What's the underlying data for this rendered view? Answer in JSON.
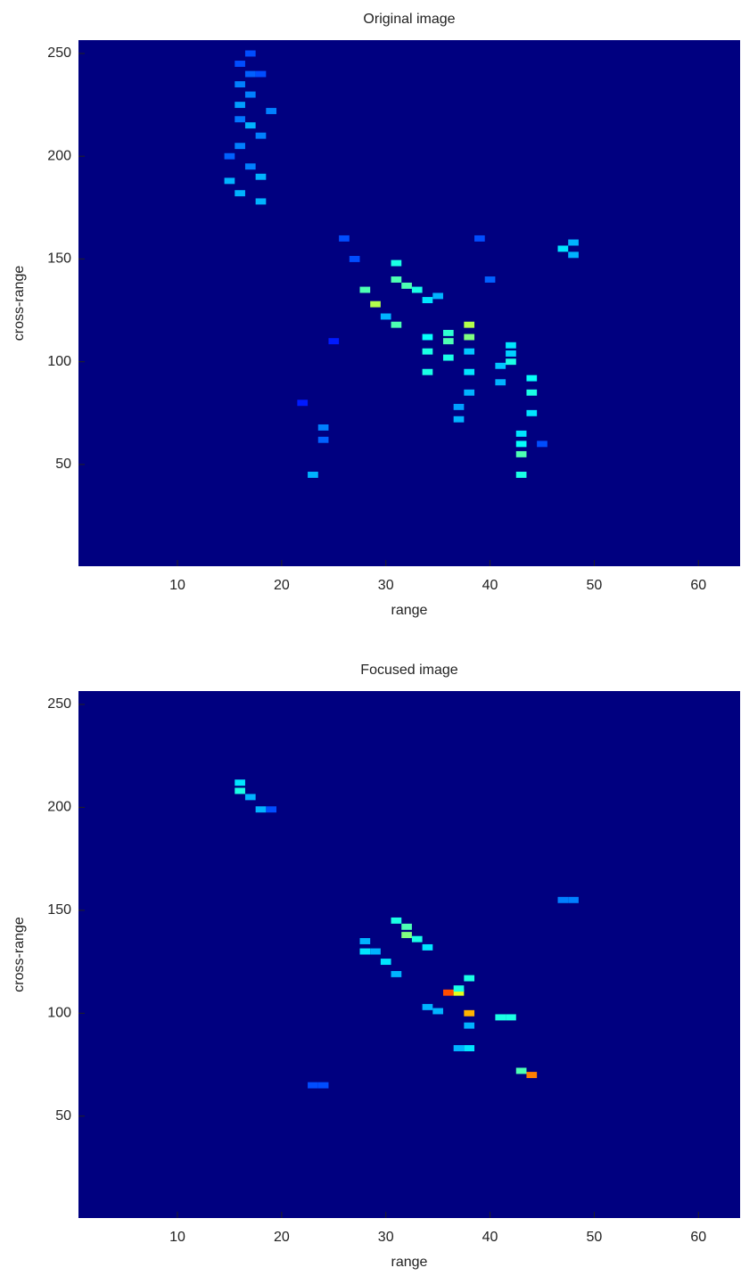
{
  "chart_data": [
    {
      "type": "heatmap",
      "title": "Original image",
      "xlabel": "range",
      "ylabel": "cross-range",
      "xlim": [
        0.5,
        64
      ],
      "ylim": [
        0.5,
        256.5
      ],
      "xticks": [
        10,
        20,
        30,
        40,
        50,
        60
      ],
      "yticks": [
        50,
        100,
        150,
        200,
        250
      ],
      "colormap": "jet",
      "clim": [
        0,
        1
      ],
      "x": [
        16,
        16,
        16,
        17,
        17,
        16,
        15,
        15,
        16,
        17,
        18,
        18,
        18,
        19,
        17,
        18,
        17,
        16,
        28,
        29,
        30,
        31,
        31,
        32,
        33,
        31,
        34,
        35,
        34,
        34,
        34,
        36,
        36,
        36,
        38,
        38,
        38,
        38,
        38,
        37,
        37,
        41,
        41,
        42,
        42,
        42,
        43,
        43,
        43,
        43,
        44,
        44,
        44,
        47,
        48,
        48,
        23,
        24,
        24,
        26,
        27,
        39,
        40,
        45,
        22,
        25
      ],
      "y": [
        245,
        235,
        225,
        230,
        215,
        205,
        200,
        188,
        182,
        195,
        190,
        178,
        210,
        222,
        250,
        240,
        240,
        218,
        135,
        128,
        122,
        148,
        140,
        137,
        135,
        118,
        130,
        132,
        105,
        95,
        112,
        110,
        102,
        114,
        118,
        112,
        95,
        85,
        105,
        72,
        78,
        90,
        98,
        100,
        108,
        104,
        65,
        55,
        45,
        60,
        85,
        75,
        92,
        155,
        158,
        152,
        45,
        68,
        62,
        160,
        150,
        160,
        140,
        60,
        80,
        110
      ],
      "values": [
        0.2,
        0.25,
        0.28,
        0.25,
        0.3,
        0.25,
        0.22,
        0.3,
        0.3,
        0.25,
        0.3,
        0.3,
        0.25,
        0.25,
        0.2,
        0.2,
        0.22,
        0.24,
        0.45,
        0.55,
        0.3,
        0.4,
        0.45,
        0.45,
        0.4,
        0.45,
        0.35,
        0.3,
        0.4,
        0.4,
        0.38,
        0.45,
        0.4,
        0.42,
        0.55,
        0.5,
        0.35,
        0.3,
        0.32,
        0.3,
        0.28,
        0.3,
        0.32,
        0.4,
        0.35,
        0.33,
        0.35,
        0.45,
        0.4,
        0.38,
        0.4,
        0.35,
        0.38,
        0.35,
        0.3,
        0.3,
        0.3,
        0.25,
        0.22,
        0.2,
        0.2,
        0.2,
        0.22,
        0.2,
        0.15,
        0.15
      ]
    },
    {
      "type": "heatmap",
      "title": "Focused image",
      "xlabel": "range",
      "ylabel": "cross-range",
      "xlim": [
        0.5,
        64
      ],
      "ylim": [
        0.5,
        256.5
      ],
      "xticks": [
        10,
        20,
        30,
        40,
        50,
        60
      ],
      "yticks": [
        50,
        100,
        150,
        200,
        250
      ],
      "colormap": "jet",
      "clim": [
        0,
        1
      ],
      "x": [
        16,
        16,
        17,
        18,
        19,
        28,
        28,
        29,
        30,
        31,
        31,
        32,
        32,
        33,
        34,
        34,
        35,
        36,
        37,
        37,
        38,
        38,
        38,
        38,
        37,
        41,
        42,
        43,
        44,
        47,
        48,
        23,
        24
      ],
      "y": [
        212,
        208,
        205,
        199,
        199,
        135,
        130,
        130,
        125,
        145,
        119,
        142,
        138,
        136,
        132,
        103,
        101,
        110,
        110,
        112,
        117,
        100,
        94,
        83,
        83,
        98,
        98,
        72,
        70,
        155,
        155,
        65,
        65
      ],
      "values": [
        0.35,
        0.4,
        0.3,
        0.3,
        0.2,
        0.3,
        0.35,
        0.3,
        0.35,
        0.4,
        0.3,
        0.45,
        0.5,
        0.4,
        0.35,
        0.3,
        0.3,
        0.8,
        0.6,
        0.4,
        0.4,
        0.7,
        0.3,
        0.35,
        0.3,
        0.4,
        0.4,
        0.45,
        0.75,
        0.25,
        0.25,
        0.2,
        0.2
      ]
    }
  ]
}
